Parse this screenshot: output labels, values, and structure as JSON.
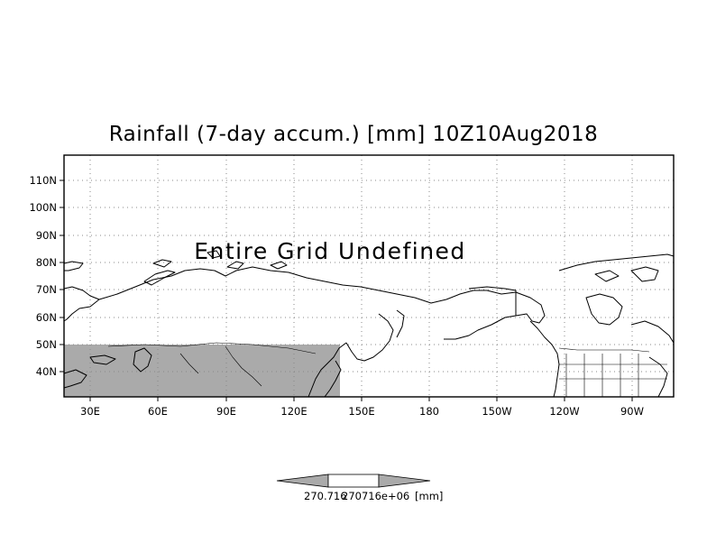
{
  "title": "Rainfall (7-day accum.) [mm] 10Z10Aug2018",
  "overlay_text": "Entire Grid Undefined",
  "lat_labels": [
    "110N",
    "100N",
    "90N",
    "80N",
    "70N",
    "60N",
    "50N",
    "40N"
  ],
  "lon_labels": [
    "30E",
    "60E",
    "90E",
    "120E",
    "150E",
    "180",
    "150W",
    "120W",
    "90W"
  ],
  "colorbar": {
    "value_label": "270.716",
    "overlap_label": "270716e+06",
    "unit_label": "[mm]"
  },
  "colors": {
    "land_shade": "#aaaaaa",
    "coastline": "#000000",
    "grid": "#888888",
    "colorbar_arrow": "#aaaaaa"
  }
}
